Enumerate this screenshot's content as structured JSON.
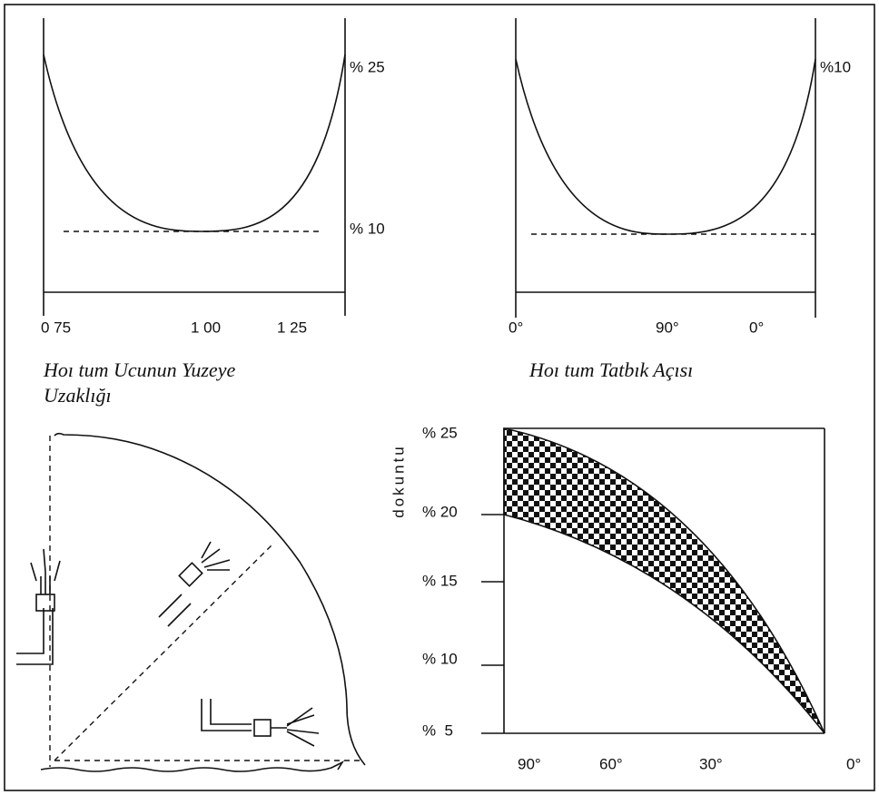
{
  "left_panel": {
    "right_labels": [
      "% 25",
      "% 10"
    ],
    "x_labels": [
      "0 75",
      "1 00",
      "1 25"
    ],
    "caption": [
      "Hoı tum Ucunun Yuzeye",
      "Uzaklığı"
    ]
  },
  "right_panel": {
    "right_labels": [
      "%10"
    ],
    "x_labels": [
      "0°",
      "90°",
      "0°"
    ],
    "caption": [
      "Hoı tum Tatbık Açısı"
    ]
  },
  "band_chart": {
    "y_label": "dokuntu",
    "y_labels": [
      "% 25",
      "% 20",
      "% 15",
      "% 10",
      "%  5"
    ],
    "x_labels": [
      "90°",
      "60°",
      "30°",
      "0°"
    ]
  }
}
